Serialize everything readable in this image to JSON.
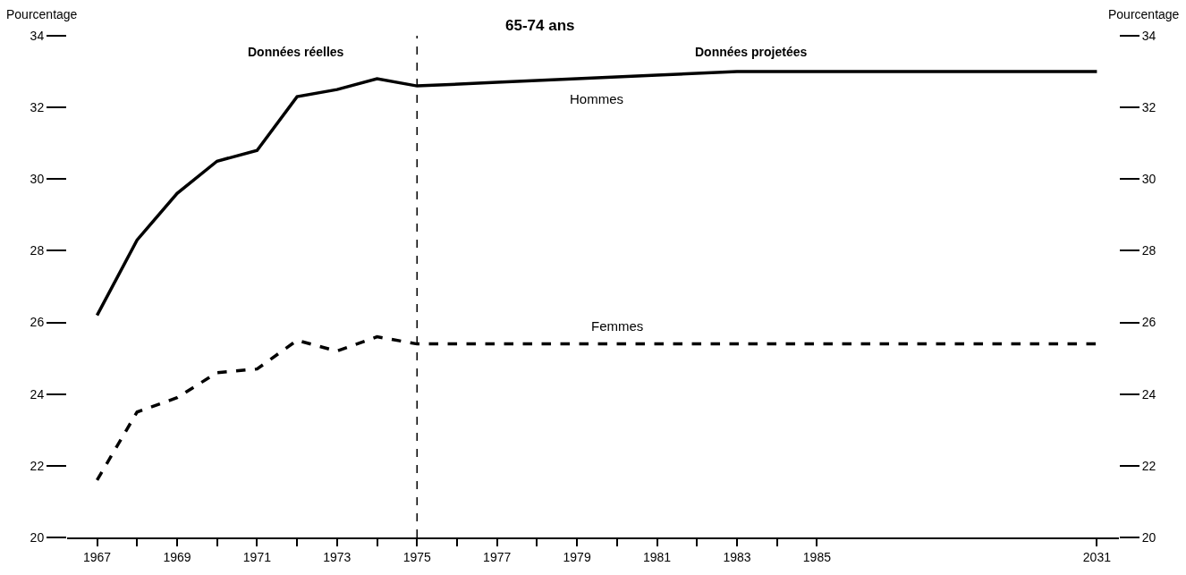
{
  "chart_data": {
    "type": "line",
    "title": "65-74 ans",
    "categories": [
      "1967",
      null,
      "1969",
      null,
      "1971",
      null,
      "1973",
      null,
      "1975",
      null,
      "1977",
      null,
      "1979",
      null,
      "1981",
      null,
      "1983",
      null,
      "1985",
      null,
      null,
      null,
      null,
      null,
      null,
      "2031"
    ],
    "series": [
      {
        "name": "Hommes",
        "color": "#000000",
        "line_style": "solid",
        "values": [
          26.2,
          28.3,
          29.6,
          30.5,
          30.8,
          32.3,
          32.5,
          32.8,
          32.6,
          null,
          32.7,
          null,
          32.8,
          null,
          32.9,
          null,
          33.0,
          null,
          33.0,
          null,
          null,
          null,
          null,
          null,
          null,
          33.0
        ]
      },
      {
        "name": "Femmes",
        "color": "#000000",
        "line_style": "dashed",
        "values": [
          21.6,
          23.5,
          23.9,
          24.6,
          24.7,
          25.5,
          25.2,
          25.6,
          25.4,
          null,
          25.4,
          null,
          25.4,
          null,
          25.4,
          null,
          25.4,
          null,
          25.4,
          null,
          null,
          null,
          null,
          null,
          null,
          25.4
        ]
      }
    ],
    "ylabel": "Pourcentage",
    "y2label": "Pourcentage",
    "ylim": [
      20,
      34
    ],
    "yticks": [
      20,
      22,
      24,
      26,
      28,
      30,
      32,
      34
    ],
    "y2lim": [
      20,
      34
    ],
    "y2ticks": [
      20,
      22,
      24,
      26,
      28,
      30,
      32,
      34
    ],
    "ref_lines": [
      {
        "axis": "x",
        "value": "1975",
        "line_style": "dashed",
        "color": "#000000"
      }
    ],
    "annotations": [
      "Données réelles",
      "Données projetées"
    ],
    "legend": false,
    "marker": "none"
  }
}
